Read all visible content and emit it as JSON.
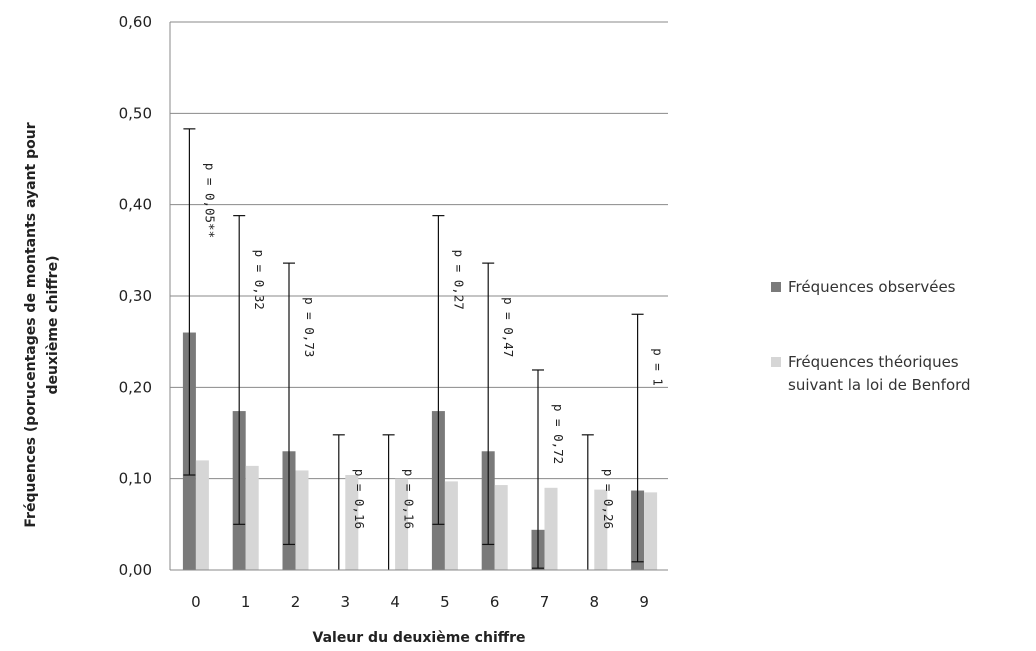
{
  "chart_data": {
    "type": "bar",
    "categories": [
      "0",
      "1",
      "2",
      "3",
      "4",
      "5",
      "6",
      "7",
      "8",
      "9"
    ],
    "series": [
      {
        "name": "Fréquences observées",
        "color": "#7a7a7a",
        "values": [
          0.26,
          0.174,
          0.13,
          0.0,
          0.0,
          0.174,
          0.13,
          0.044,
          0.0,
          0.087
        ],
        "error_low": [
          0.104,
          0.05,
          0.028,
          0.0,
          0.0,
          0.05,
          0.028,
          0.002,
          0.0,
          0.009
        ],
        "error_high": [
          0.483,
          0.388,
          0.336,
          0.148,
          0.148,
          0.388,
          0.336,
          0.219,
          0.148,
          0.28
        ]
      },
      {
        "name": "Fréquences théoriques suivant la loi de Benford",
        "color": "#d6d6d6",
        "values": [
          0.12,
          0.114,
          0.109,
          0.104,
          0.1,
          0.097,
          0.093,
          0.09,
          0.088,
          0.085
        ]
      }
    ],
    "annotations": [
      "p = 0,05**",
      "p = 0,32",
      "p = 0,73",
      "p = 0,16",
      "p = 0,16",
      "p = 0,27",
      "p = 0,47",
      "p = 0,72",
      "p = 0,26",
      "p = 1"
    ],
    "ylim": [
      0,
      0.6
    ],
    "yticks": [
      "0,00",
      "0,10",
      "0,20",
      "0,30",
      "0,40",
      "0,50",
      "0,60"
    ],
    "xlabel": "Valeur du deuxième chiffre",
    "ylabel_line1": "Fréquences (porucentages de montants ayant pour",
    "ylabel_line2": "deuxième chiffre)",
    "legend": {
      "placement": "right",
      "items": [
        "Fréquences observées",
        "Fréquences théoriques",
        "suivant la loi de Benford"
      ]
    },
    "grid": true
  }
}
